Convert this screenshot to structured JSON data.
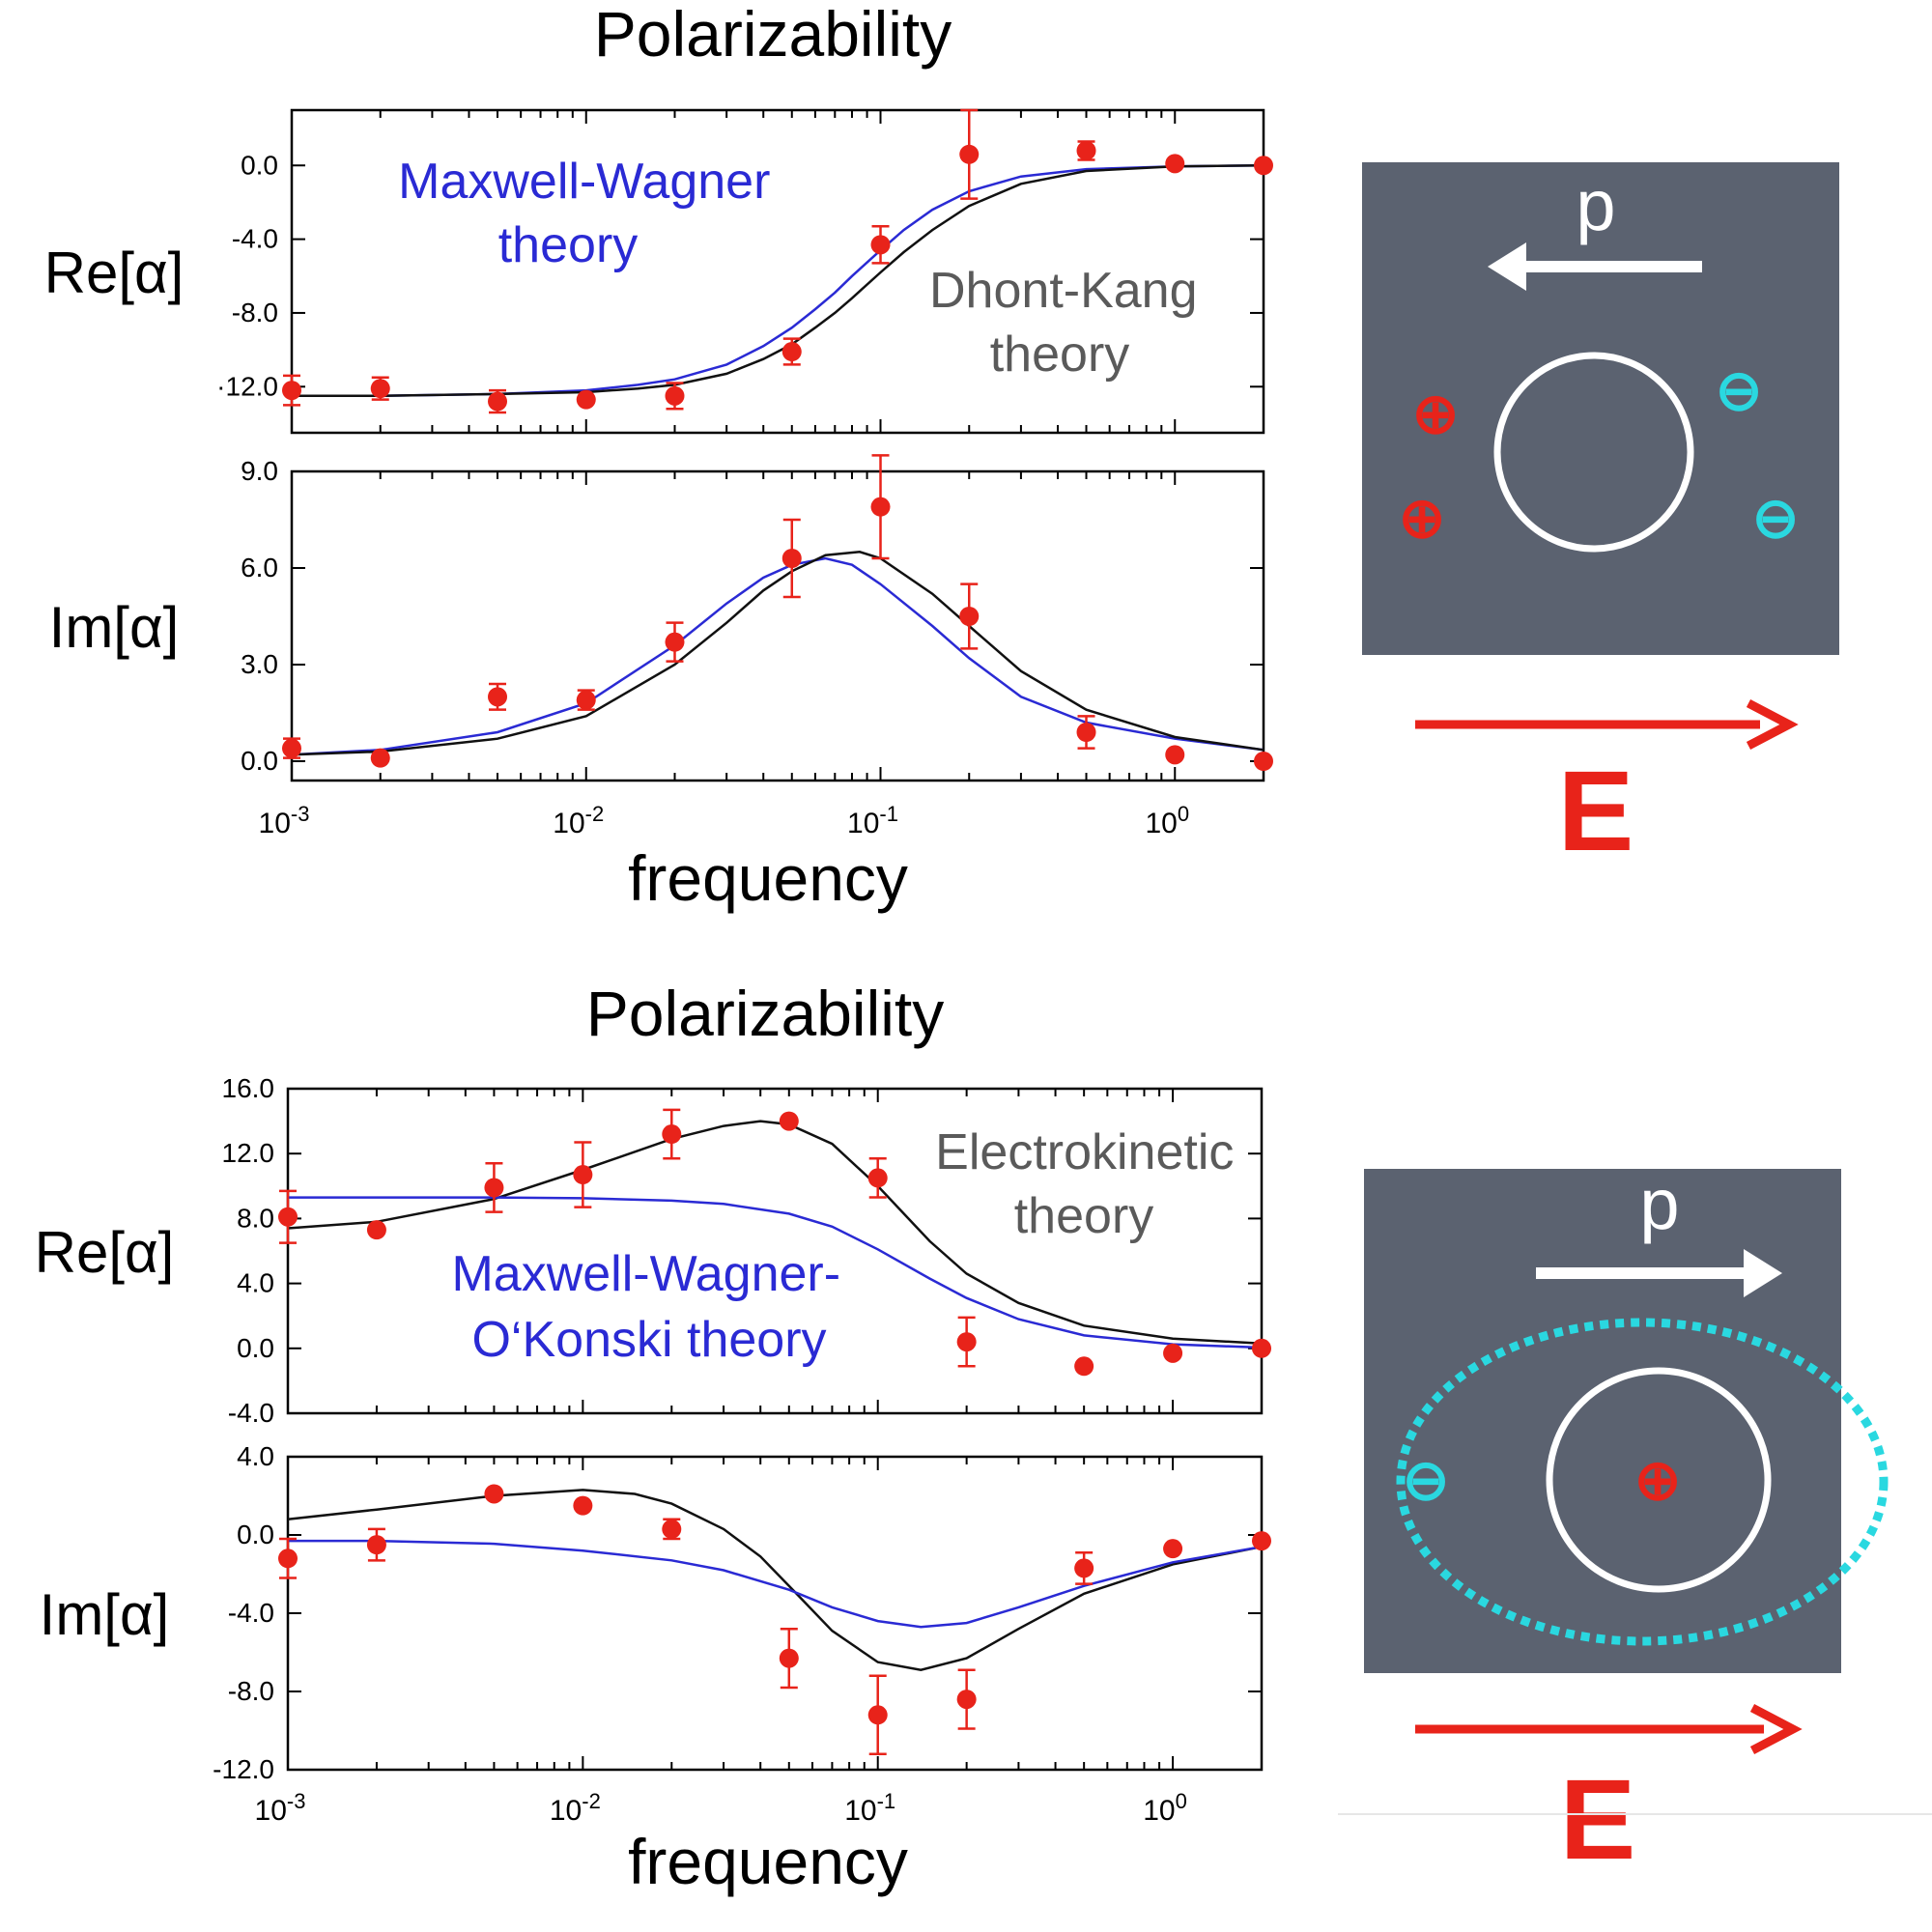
{
  "panels": [
    {
      "title": "Polarizability",
      "xlabel": "frequency",
      "annotations": [
        {
          "lines": [
            "Maxwell-Wagner",
            "theory"
          ],
          "color": "#2a2ad4"
        },
        {
          "lines": [
            "Dhont-Kang",
            "theory"
          ],
          "color": "#5a5a5a"
        }
      ],
      "schematic": {
        "dipole_label": "p",
        "dipole_direction": "left",
        "field_label": "E",
        "plus_sign": "⊕",
        "minus_sign": "⊖",
        "charges_plus": 2,
        "charges_minus": 2,
        "dashed_layer": false
      }
    },
    {
      "title": "Polarizability",
      "xlabel": "frequency",
      "annotations": [
        {
          "lines": [
            "Electrokinetic",
            "theory"
          ],
          "color": "#5a5a5a"
        },
        {
          "lines": [
            "Maxwell-Wagner-",
            "O‘Konski theory"
          ],
          "color": "#2a2ad4"
        }
      ],
      "schematic": {
        "dipole_label": "p",
        "dipole_direction": "right",
        "field_label": "E",
        "plus_sign": "⊕",
        "minus_sign": "⊖",
        "charges_plus": 1,
        "charges_minus": 1,
        "dashed_layer": true
      }
    }
  ],
  "chart_data": [
    {
      "type": "scatter",
      "ylabel": "Re[α]",
      "xscale": "log",
      "xlim": [
        0.001,
        2
      ],
      "ylim": [
        -14.5,
        3
      ],
      "yticks": [
        -12.0,
        -8.0,
        -4.0,
        0.0
      ],
      "ytick_labels": [
        "·12.0",
        "-8.0",
        "-4.0",
        "0.0"
      ],
      "xticks": [
        0.001,
        0.01,
        0.1,
        1
      ],
      "xtick_labels": [
        "10-3",
        "10-2",
        "10-1",
        "100"
      ],
      "points": [
        {
          "x": 0.001,
          "y": -12.2,
          "err": 0.8
        },
        {
          "x": 0.002,
          "y": -12.1,
          "err": 0.6
        },
        {
          "x": 0.005,
          "y": -12.8,
          "err": 0.6
        },
        {
          "x": 0.01,
          "y": -12.7,
          "err": 0
        },
        {
          "x": 0.02,
          "y": -12.5,
          "err": 0.7
        },
        {
          "x": 0.05,
          "y": -10.1,
          "err": 0.7
        },
        {
          "x": 0.1,
          "y": -4.3,
          "err": 1.0
        },
        {
          "x": 0.2,
          "y": 0.6,
          "err": 2.4
        },
        {
          "x": 0.5,
          "y": 0.8,
          "err": 0.5
        },
        {
          "x": 1,
          "y": 0.1,
          "err": 0
        },
        {
          "x": 2,
          "y": 0.0,
          "err": 0
        }
      ],
      "series": [
        {
          "name": "Maxwell-Wagner theory",
          "color": "#2a2ad4",
          "x": [
            0.001,
            0.002,
            0.005,
            0.01,
            0.015,
            0.02,
            0.03,
            0.04,
            0.05,
            0.06,
            0.07,
            0.08,
            0.1,
            0.12,
            0.15,
            0.2,
            0.3,
            0.5,
            1,
            2
          ],
          "y": [
            -12.5,
            -12.5,
            -12.4,
            -12.2,
            -11.9,
            -11.6,
            -10.8,
            -9.8,
            -8.8,
            -7.8,
            -6.9,
            -6.0,
            -4.6,
            -3.5,
            -2.4,
            -1.4,
            -0.6,
            -0.2,
            -0.05,
            0
          ]
        },
        {
          "name": "Dhont-Kang theory",
          "color": "#111111",
          "x": [
            0.001,
            0.002,
            0.005,
            0.01,
            0.015,
            0.02,
            0.03,
            0.04,
            0.05,
            0.06,
            0.07,
            0.08,
            0.1,
            0.12,
            0.15,
            0.2,
            0.3,
            0.5,
            1,
            2
          ],
          "y": [
            -12.5,
            -12.5,
            -12.4,
            -12.3,
            -12.1,
            -11.9,
            -11.3,
            -10.5,
            -9.7,
            -8.8,
            -8.0,
            -7.2,
            -5.8,
            -4.7,
            -3.5,
            -2.2,
            -1.0,
            -0.3,
            -0.05,
            0
          ]
        }
      ]
    },
    {
      "type": "scatter",
      "ylabel": "Im[α]",
      "xscale": "log",
      "xlim": [
        0.001,
        2
      ],
      "ylim": [
        -0.6,
        9.0
      ],
      "yticks": [
        0.0,
        3.0,
        6.0,
        9.0
      ],
      "ytick_labels": [
        "0.0",
        "3.0",
        "6.0",
        "9.0"
      ],
      "xticks": [
        0.001,
        0.01,
        0.1,
        1
      ],
      "xtick_labels": [
        "10-3",
        "10-2",
        "10-1",
        "100"
      ],
      "points": [
        {
          "x": 0.001,
          "y": 0.4,
          "err": 0.3
        },
        {
          "x": 0.002,
          "y": 0.1,
          "err": 0
        },
        {
          "x": 0.005,
          "y": 2.0,
          "err": 0.4
        },
        {
          "x": 0.01,
          "y": 1.9,
          "err": 0.3
        },
        {
          "x": 0.02,
          "y": 3.7,
          "err": 0.6
        },
        {
          "x": 0.05,
          "y": 6.3,
          "err": 1.2
        },
        {
          "x": 0.1,
          "y": 7.9,
          "err": 1.6
        },
        {
          "x": 0.2,
          "y": 4.5,
          "err": 1.0
        },
        {
          "x": 0.5,
          "y": 0.9,
          "err": 0.5
        },
        {
          "x": 1,
          "y": 0.2,
          "err": 0
        },
        {
          "x": 2,
          "y": 0.0,
          "err": 0
        }
      ],
      "series": [
        {
          "name": "Maxwell-Wagner theory",
          "color": "#2a2ad4",
          "x": [
            0.001,
            0.002,
            0.005,
            0.01,
            0.02,
            0.03,
            0.04,
            0.05,
            0.065,
            0.08,
            0.1,
            0.15,
            0.2,
            0.3,
            0.5,
            1,
            2
          ],
          "y": [
            0.2,
            0.35,
            0.9,
            1.8,
            3.6,
            4.9,
            5.7,
            6.1,
            6.3,
            6.1,
            5.5,
            4.2,
            3.2,
            2.0,
            1.2,
            0.7,
            0.35
          ]
        },
        {
          "name": "Dhont-Kang theory",
          "color": "#111111",
          "x": [
            0.001,
            0.002,
            0.005,
            0.01,
            0.02,
            0.03,
            0.04,
            0.05,
            0.065,
            0.085,
            0.1,
            0.15,
            0.2,
            0.3,
            0.5,
            1,
            2
          ],
          "y": [
            0.2,
            0.3,
            0.7,
            1.4,
            3.0,
            4.3,
            5.3,
            5.9,
            6.4,
            6.5,
            6.3,
            5.2,
            4.2,
            2.8,
            1.6,
            0.75,
            0.35
          ]
        }
      ]
    },
    {
      "type": "scatter",
      "ylabel": "Re[α]",
      "xscale": "log",
      "xlim": [
        0.001,
        2
      ],
      "ylim": [
        -4.0,
        16.0
      ],
      "yticks": [
        -4.0,
        0.0,
        4.0,
        8.0,
        12.0,
        16.0
      ],
      "ytick_labels": [
        "-4.0",
        "0.0",
        "4.0",
        "8.0",
        "12.0",
        "16.0"
      ],
      "xticks": [
        0.001,
        0.01,
        0.1,
        1
      ],
      "xtick_labels": [
        "10-3",
        "10-2",
        "10-1",
        "100"
      ],
      "points": [
        {
          "x": 0.001,
          "y": 8.1,
          "err": 1.6
        },
        {
          "x": 0.002,
          "y": 7.3,
          "err": 0
        },
        {
          "x": 0.005,
          "y": 9.9,
          "err": 1.5
        },
        {
          "x": 0.01,
          "y": 10.7,
          "err": 2.0
        },
        {
          "x": 0.02,
          "y": 13.2,
          "err": 1.5
        },
        {
          "x": 0.05,
          "y": 14.0,
          "err": 0
        },
        {
          "x": 0.1,
          "y": 10.5,
          "err": 1.2
        },
        {
          "x": 0.2,
          "y": 0.4,
          "err": 1.5
        },
        {
          "x": 0.5,
          "y": -1.1,
          "err": 0
        },
        {
          "x": 1,
          "y": -0.3,
          "err": 0
        },
        {
          "x": 2,
          "y": 0.0,
          "err": 0
        }
      ],
      "series": [
        {
          "name": "Electrokinetic theory",
          "color": "#111111",
          "x": [
            0.001,
            0.002,
            0.005,
            0.01,
            0.02,
            0.03,
            0.04,
            0.05,
            0.07,
            0.1,
            0.15,
            0.2,
            0.3,
            0.5,
            1,
            2
          ],
          "y": [
            7.4,
            7.8,
            9.2,
            11.0,
            12.9,
            13.7,
            14.0,
            13.8,
            12.6,
            10.0,
            6.6,
            4.6,
            2.8,
            1.4,
            0.6,
            0.3
          ]
        },
        {
          "name": "Maxwell-Wagner-O‘Konski theory",
          "color": "#2a2ad4",
          "x": [
            0.001,
            0.002,
            0.005,
            0.01,
            0.02,
            0.03,
            0.05,
            0.07,
            0.1,
            0.15,
            0.2,
            0.3,
            0.5,
            1,
            2
          ],
          "y": [
            9.3,
            9.3,
            9.3,
            9.25,
            9.1,
            8.9,
            8.3,
            7.5,
            6.1,
            4.3,
            3.1,
            1.8,
            0.8,
            0.25,
            0.05
          ]
        }
      ]
    },
    {
      "type": "scatter",
      "ylabel": "Im[α]",
      "xscale": "log",
      "xlim": [
        0.001,
        2
      ],
      "ylim": [
        -12.0,
        4.0
      ],
      "yticks": [
        -12.0,
        -8.0,
        -4.0,
        0.0,
        4.0
      ],
      "ytick_labels": [
        "-12.0",
        "-8.0",
        "-4.0",
        "0.0",
        "4.0"
      ],
      "xticks": [
        0.001,
        0.01,
        0.1,
        1
      ],
      "xtick_labels": [
        "10-3",
        "10-2",
        "10-1",
        "100"
      ],
      "points": [
        {
          "x": 0.001,
          "y": -1.2,
          "err": 1.0
        },
        {
          "x": 0.002,
          "y": -0.5,
          "err": 0.8
        },
        {
          "x": 0.005,
          "y": 2.1,
          "err": 0
        },
        {
          "x": 0.01,
          "y": 1.5,
          "err": 0
        },
        {
          "x": 0.02,
          "y": 0.3,
          "err": 0.5
        },
        {
          "x": 0.05,
          "y": -6.3,
          "err": 1.5
        },
        {
          "x": 0.1,
          "y": -9.2,
          "err": 2.0
        },
        {
          "x": 0.2,
          "y": -8.4,
          "err": 1.5
        },
        {
          "x": 0.5,
          "y": -1.7,
          "err": 0.8
        },
        {
          "x": 1,
          "y": -0.7,
          "err": 0
        },
        {
          "x": 2,
          "y": -0.3,
          "err": 0
        }
      ],
      "series": [
        {
          "name": "Electrokinetic theory",
          "color": "#111111",
          "x": [
            0.001,
            0.002,
            0.005,
            0.01,
            0.015,
            0.02,
            0.03,
            0.04,
            0.05,
            0.07,
            0.1,
            0.14,
            0.2,
            0.3,
            0.5,
            1,
            2
          ],
          "y": [
            0.8,
            1.3,
            2.0,
            2.3,
            2.1,
            1.6,
            0.3,
            -1.1,
            -2.6,
            -4.9,
            -6.5,
            -6.9,
            -6.3,
            -4.8,
            -3.0,
            -1.5,
            -0.6
          ]
        },
        {
          "name": "Maxwell-Wagner-O‘Konski theory",
          "color": "#2a2ad4",
          "x": [
            0.001,
            0.002,
            0.005,
            0.01,
            0.02,
            0.03,
            0.05,
            0.07,
            0.1,
            0.14,
            0.2,
            0.3,
            0.5,
            1,
            2
          ],
          "y": [
            -0.3,
            -0.3,
            -0.45,
            -0.8,
            -1.3,
            -1.8,
            -2.8,
            -3.7,
            -4.4,
            -4.7,
            -4.5,
            -3.7,
            -2.6,
            -1.4,
            -0.6
          ]
        }
      ]
    }
  ]
}
